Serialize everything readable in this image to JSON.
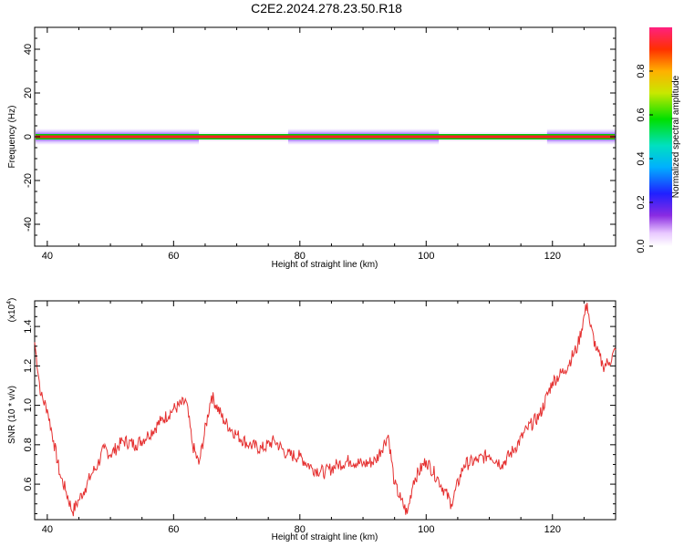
{
  "title": "C2E2.2024.278.23.50.R18",
  "colors": {
    "snr_line": "#e53030",
    "center_line": "#00cc00",
    "center_core": "#ff2020",
    "background": "#ffffff"
  },
  "chart_data": [
    {
      "type": "heatmap",
      "xlabel": "Height of straight line (km)",
      "ylabel": "Frequency (Hz)",
      "xlim": [
        38,
        130
      ],
      "ylim": [
        -50,
        50
      ],
      "xticks": [
        "40",
        "60",
        "80",
        "100",
        "120"
      ],
      "yticks": [
        "40",
        "20",
        "0",
        "-20",
        "-40"
      ],
      "colorbar": {
        "label": "Normalized spectral amplitude",
        "range": [
          0,
          1
        ],
        "ticks": [
          "0.0",
          "0.2",
          "0.4",
          "0.6",
          "0.8"
        ]
      },
      "signal": {
        "frequency_center": 0,
        "halfwidth_hz": 2,
        "strong_segments_km": [
          [
            38,
            64
          ],
          [
            78,
            102
          ],
          [
            119,
            130
          ]
        ]
      }
    },
    {
      "type": "line",
      "xlabel": "Height of straight line (km)",
      "ylabel": "SNR (10 * v/v)",
      "scale_note_base": "(x10",
      "scale_note_exp": "4",
      "scale_note_close": ")",
      "xlim": [
        38,
        130
      ],
      "ylim": [
        0.42,
        1.53
      ],
      "xticks": [
        "40",
        "60",
        "80",
        "100",
        "120"
      ],
      "yticks": [
        "0.6",
        "0.8",
        "1.0",
        "1.2",
        "1.4"
      ],
      "series": [
        {
          "x": [
            38,
            39,
            40,
            41,
            42,
            43,
            44,
            45,
            46,
            47,
            48,
            49,
            50,
            52,
            54,
            56,
            58,
            60,
            62,
            63,
            64,
            66,
            68,
            70,
            72,
            74,
            76,
            78,
            80,
            82,
            84,
            86,
            88,
            90,
            92,
            94,
            95,
            96,
            97,
            98,
            100,
            102,
            104,
            106,
            108,
            110,
            112,
            114,
            116,
            118,
            120,
            122,
            124,
            125.5,
            126,
            127,
            128,
            129,
            130
          ],
          "y": [
            1.32,
            1.05,
            0.98,
            0.82,
            0.65,
            0.56,
            0.46,
            0.52,
            0.58,
            0.65,
            0.7,
            0.78,
            0.75,
            0.82,
            0.8,
            0.85,
            0.92,
            0.98,
            1.02,
            0.8,
            0.7,
            1.05,
            0.92,
            0.85,
            0.8,
            0.78,
            0.82,
            0.75,
            0.74,
            0.68,
            0.66,
            0.7,
            0.72,
            0.7,
            0.72,
            0.85,
            0.6,
            0.52,
            0.45,
            0.62,
            0.72,
            0.62,
            0.5,
            0.7,
            0.72,
            0.75,
            0.7,
            0.78,
            0.88,
            0.95,
            1.12,
            1.18,
            1.3,
            1.52,
            1.4,
            1.28,
            1.2,
            1.22,
            1.28
          ]
        }
      ]
    }
  ]
}
